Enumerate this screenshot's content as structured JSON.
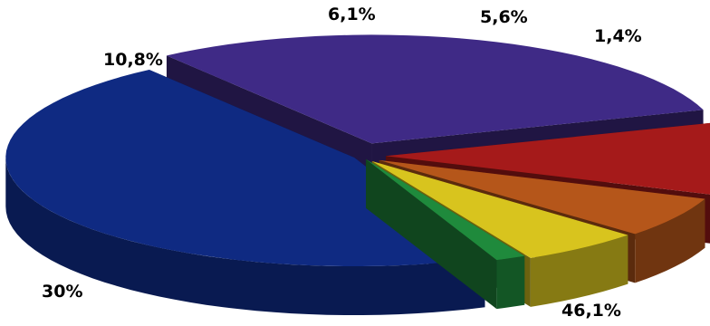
{
  "chart_data": {
    "type": "pie",
    "style": "3d-exploded",
    "title": "",
    "legend": "none",
    "slices": [
      {
        "label": "46,1%",
        "value": 46.1,
        "color": "#0f2a82"
      },
      {
        "label": "30%",
        "value": 30.0,
        "color": "#3f2a86"
      },
      {
        "label": "10,8%",
        "value": 10.8,
        "color": "#a51a1a"
      },
      {
        "label": "6,1%",
        "value": 6.1,
        "color": "#b5561a"
      },
      {
        "label": "5,6%",
        "value": 5.6,
        "color": "#d8c41e"
      },
      {
        "label": "1,4%",
        "value": 1.4,
        "color": "#1f8a3c"
      }
    ]
  }
}
